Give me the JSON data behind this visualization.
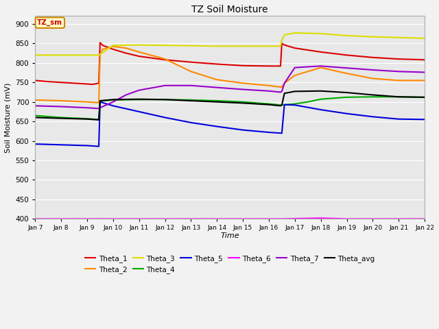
{
  "title": "TZ Soil Moisture",
  "xlabel": "Time",
  "ylabel": "Soil Moisture (mV)",
  "ylim": [
    400,
    920
  ],
  "yticks": [
    400,
    450,
    500,
    550,
    600,
    650,
    700,
    750,
    800,
    850,
    900
  ],
  "x_start": 7,
  "x_end": 22,
  "xtick_positions": [
    7,
    8,
    9,
    10,
    11,
    12,
    13,
    14,
    15,
    16,
    17,
    18,
    19,
    20,
    21,
    22
  ],
  "xtick_labels": [
    "Jan 7",
    "Jan 8",
    "Jan 9",
    "Jan 10",
    "Jan 11",
    "Jan 12",
    "Jan 13",
    "Jan 14",
    "Jan 15",
    "Jan 16",
    "Jan 17",
    "Jan 18",
    "Jan 19",
    "Jan 20",
    "Jan 21",
    "Jan 22"
  ],
  "bg_color": "#e8e8e8",
  "fig_color": "#f2f2f2",
  "annotation_text": "TZ_sm",
  "annotation_color": "#cc0000",
  "annotation_bg": "#ffffcc",
  "annotation_edge": "#cc8800",
  "series_order": [
    "Theta_1",
    "Theta_2",
    "Theta_3",
    "Theta_4",
    "Theta_5",
    "Theta_6",
    "Theta_7",
    "Theta_avg"
  ],
  "legend_order": [
    "Theta_1",
    "Theta_2",
    "Theta_3",
    "Theta_4",
    "Theta_5",
    "Theta_6",
    "Theta_7",
    "Theta_avg"
  ],
  "series": {
    "Theta_1": {
      "color": "#dd0000",
      "points": [
        [
          7,
          755
        ],
        [
          7.5,
          752
        ],
        [
          8,
          750
        ],
        [
          8.5,
          748
        ],
        [
          9,
          746
        ],
        [
          9.2,
          745
        ],
        [
          9.45,
          748
        ],
        [
          9.5,
          852
        ],
        [
          9.6,
          845
        ],
        [
          10,
          835
        ],
        [
          10.5,
          825
        ],
        [
          11,
          817
        ],
        [
          12,
          808
        ],
        [
          13,
          802
        ],
        [
          14,
          797
        ],
        [
          15,
          793
        ],
        [
          16,
          792
        ],
        [
          16.45,
          792
        ],
        [
          16.5,
          850
        ],
        [
          16.6,
          846
        ],
        [
          17,
          838
        ],
        [
          18,
          828
        ],
        [
          19,
          820
        ],
        [
          20,
          814
        ],
        [
          21,
          810
        ],
        [
          22,
          808
        ]
      ]
    },
    "Theta_2": {
      "color": "#ff8800",
      "points": [
        [
          7,
          705
        ],
        [
          8,
          703
        ],
        [
          9,
          700
        ],
        [
          9.45,
          698
        ],
        [
          9.5,
          820
        ],
        [
          9.6,
          835
        ],
        [
          10,
          842
        ],
        [
          10.5,
          838
        ],
        [
          11,
          828
        ],
        [
          12,
          810
        ],
        [
          13,
          778
        ],
        [
          14,
          757
        ],
        [
          15,
          748
        ],
        [
          16,
          742
        ],
        [
          16.45,
          738
        ],
        [
          16.5,
          738
        ],
        [
          16.6,
          748
        ],
        [
          17,
          768
        ],
        [
          18,
          788
        ],
        [
          19,
          773
        ],
        [
          20,
          760
        ],
        [
          21,
          755
        ],
        [
          22,
          755
        ]
      ]
    },
    "Theta_3": {
      "color": "#dddd00",
      "points": [
        [
          7,
          820
        ],
        [
          8,
          820
        ],
        [
          9,
          820
        ],
        [
          9.45,
          820
        ],
        [
          9.5,
          822
        ],
        [
          10,
          845
        ],
        [
          11,
          846
        ],
        [
          12,
          845
        ],
        [
          13,
          844
        ],
        [
          14,
          843
        ],
        [
          15,
          843
        ],
        [
          16,
          843
        ],
        [
          16.45,
          843
        ],
        [
          16.5,
          858
        ],
        [
          16.6,
          872
        ],
        [
          17,
          877
        ],
        [
          18,
          875
        ],
        [
          19,
          870
        ],
        [
          20,
          867
        ],
        [
          21,
          865
        ],
        [
          22,
          863
        ]
      ]
    },
    "Theta_4": {
      "color": "#00aa00",
      "points": [
        [
          7,
          665
        ],
        [
          8,
          660
        ],
        [
          9,
          657
        ],
        [
          9.45,
          655
        ],
        [
          9.5,
          702
        ],
        [
          10,
          705
        ],
        [
          11,
          706
        ],
        [
          12,
          706
        ],
        [
          13,
          705
        ],
        [
          14,
          703
        ],
        [
          15,
          700
        ],
        [
          16,
          695
        ],
        [
          16.45,
          692
        ],
        [
          16.5,
          692
        ],
        [
          17,
          695
        ],
        [
          17.5,
          700
        ],
        [
          18,
          707
        ],
        [
          19,
          712
        ],
        [
          20,
          713
        ],
        [
          21,
          713
        ],
        [
          22,
          712
        ]
      ]
    },
    "Theta_5": {
      "color": "#0000dd",
      "points": [
        [
          7,
          592
        ],
        [
          8,
          590
        ],
        [
          9,
          588
        ],
        [
          9.45,
          586
        ],
        [
          9.5,
          700
        ],
        [
          10,
          690
        ],
        [
          11,
          675
        ],
        [
          12,
          660
        ],
        [
          13,
          647
        ],
        [
          14,
          637
        ],
        [
          15,
          628
        ],
        [
          16,
          622
        ],
        [
          16.45,
          620
        ],
        [
          16.5,
          620
        ],
        [
          16.6,
          693
        ],
        [
          17,
          692
        ],
        [
          18,
          680
        ],
        [
          19,
          670
        ],
        [
          20,
          662
        ],
        [
          21,
          656
        ],
        [
          22,
          655
        ]
      ]
    },
    "Theta_6": {
      "color": "#ff00ff",
      "points": [
        [
          7,
          400
        ],
        [
          9,
          400
        ],
        [
          12,
          400
        ],
        [
          15,
          400
        ],
        [
          16.5,
          400
        ],
        [
          18,
          402
        ],
        [
          19,
          400
        ],
        [
          21,
          400
        ],
        [
          22,
          400
        ]
      ]
    },
    "Theta_7": {
      "color": "#9900cc",
      "points": [
        [
          7,
          690
        ],
        [
          8,
          688
        ],
        [
          9,
          685
        ],
        [
          9.45,
          683
        ],
        [
          9.5,
          685
        ],
        [
          10,
          700
        ],
        [
          10.5,
          718
        ],
        [
          11,
          730
        ],
        [
          12,
          742
        ],
        [
          13,
          742
        ],
        [
          14,
          737
        ],
        [
          15,
          732
        ],
        [
          16,
          728
        ],
        [
          16.45,
          725
        ],
        [
          16.5,
          727
        ],
        [
          16.6,
          748
        ],
        [
          17,
          788
        ],
        [
          18,
          792
        ],
        [
          19,
          787
        ],
        [
          20,
          782
        ],
        [
          21,
          778
        ],
        [
          22,
          776
        ]
      ]
    },
    "Theta_avg": {
      "color": "#000000",
      "points": [
        [
          7,
          660
        ],
        [
          8,
          658
        ],
        [
          9,
          656
        ],
        [
          9.45,
          654
        ],
        [
          9.5,
          703
        ],
        [
          10,
          706
        ],
        [
          11,
          707
        ],
        [
          12,
          706
        ],
        [
          13,
          703
        ],
        [
          14,
          700
        ],
        [
          15,
          697
        ],
        [
          16,
          693
        ],
        [
          16.45,
          690
        ],
        [
          16.5,
          692
        ],
        [
          16.6,
          722
        ],
        [
          17,
          727
        ],
        [
          18,
          728
        ],
        [
          19,
          724
        ],
        [
          20,
          718
        ],
        [
          21,
          713
        ],
        [
          22,
          712
        ]
      ]
    }
  }
}
